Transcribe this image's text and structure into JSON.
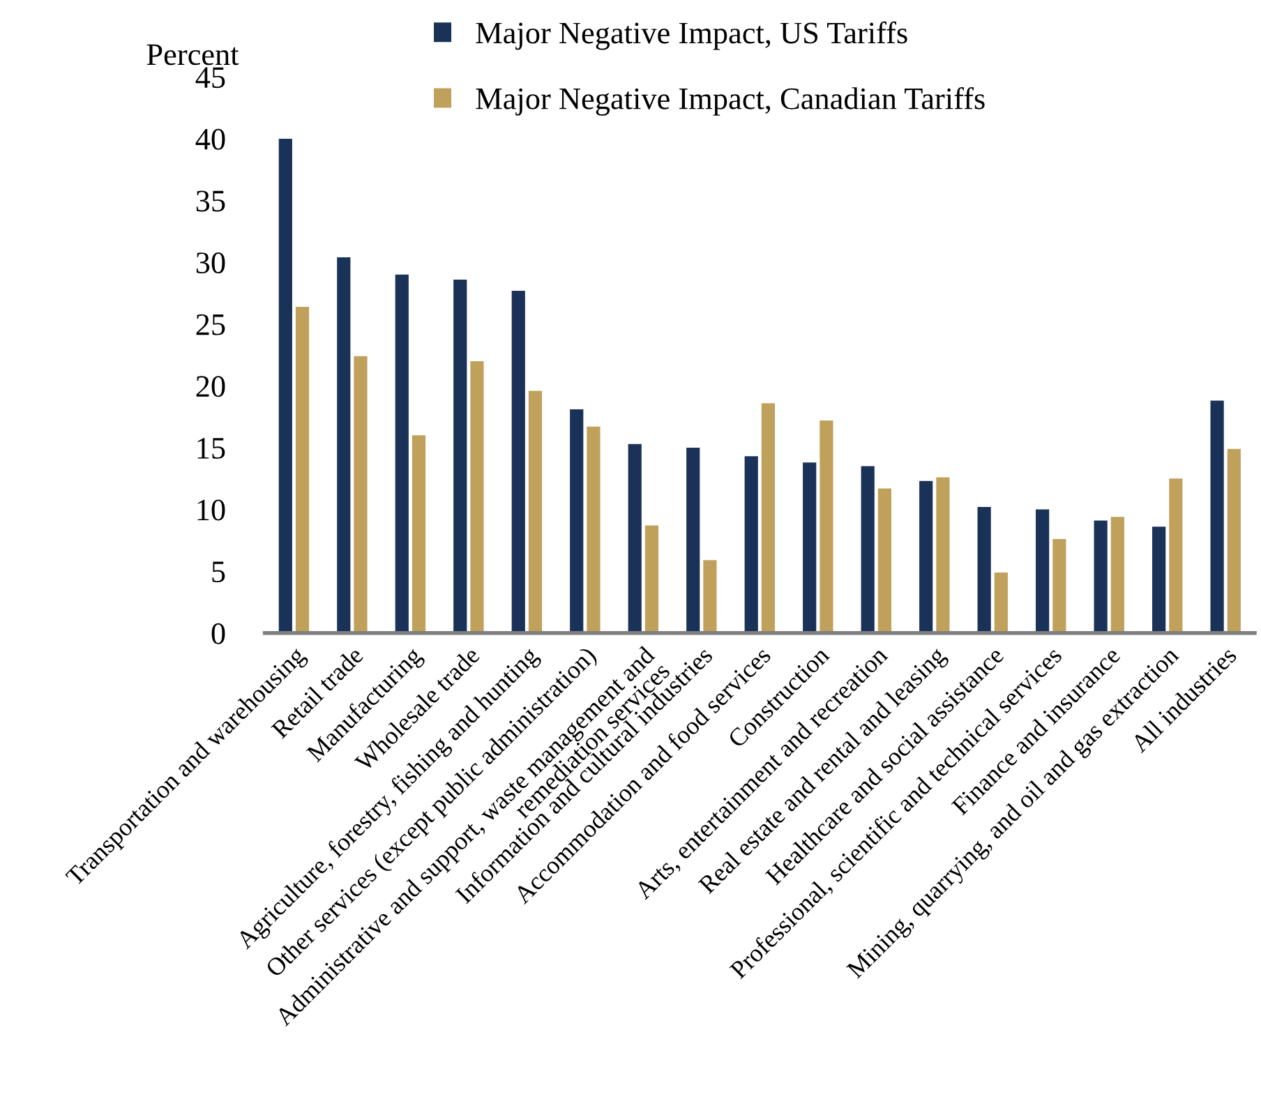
{
  "chart_data": {
    "type": "bar",
    "ylabel": "Percent",
    "categories": [
      "Transportation and warehousing",
      "Retail trade",
      "Manufacturing",
      "Wholesale trade",
      "Agriculture, forestry, fishing and hunting",
      "Other services (except public administration)",
      "Administrative and support, waste management and\nremediation services",
      "Information and cultural industries",
      "Accommodation and food services",
      "Construction",
      "Arts, entertainment and recreation",
      "Real estate and rental and leasing",
      "Healthcare and social assistance",
      "Professional, scientific and technical services",
      "Finance and insurance",
      "Mining, quarrying, and oil and gas extraction",
      "All industries"
    ],
    "series": [
      {
        "name": "Major Negative Impact, US Tariffs",
        "color": "#1a3158",
        "values": [
          40.0,
          30.4,
          29.0,
          28.6,
          27.7,
          18.1,
          15.3,
          15.0,
          14.3,
          13.8,
          13.5,
          12.3,
          10.2,
          10.0,
          9.1,
          8.6,
          18.8
        ]
      },
      {
        "name": "Major Negative Impact, Canadian Tariffs",
        "color": "#bfa15c",
        "values": [
          26.4,
          22.4,
          16.0,
          22.0,
          19.6,
          16.7,
          8.7,
          5.9,
          18.6,
          17.2,
          11.7,
          12.6,
          4.9,
          7.6,
          9.4,
          12.5,
          14.9
        ]
      }
    ],
    "ylim": [
      0,
      45
    ],
    "yticks": [
      0,
      5,
      10,
      15,
      20,
      25,
      30,
      35,
      40,
      45
    ],
    "grid": false,
    "legend": "top"
  }
}
